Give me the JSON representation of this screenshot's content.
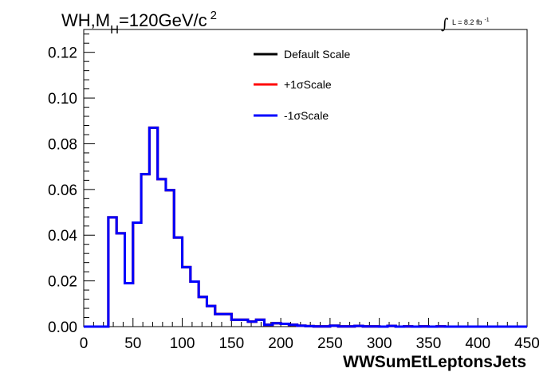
{
  "chart_data": {
    "type": "line",
    "title": {
      "main": "WH,M",
      "sub": "H",
      "rest": "=120GeV/c",
      "sup": "2"
    },
    "luminosity": {
      "symbol": "∫",
      "text": "L = 8.2 fb",
      "sup": "-1"
    },
    "xlabel": "WWSumEtLeptonsJets",
    "ylabel": "",
    "xlim": [
      0,
      450
    ],
    "ylim": [
      0,
      0.13
    ],
    "x_ticks": [
      "0",
      "50",
      "100",
      "150",
      "200",
      "250",
      "300",
      "350",
      "400",
      "450"
    ],
    "y_ticks": [
      "0.00",
      "0.02",
      "0.04",
      "0.06",
      "0.08",
      "0.10",
      "0.12"
    ],
    "bin_edges": [
      0,
      8.33,
      16.67,
      25,
      33.33,
      41.67,
      50,
      58.33,
      66.67,
      75,
      83.33,
      91.67,
      100,
      108.33,
      116.67,
      125,
      133.33,
      141.67,
      150,
      158.33,
      166.67,
      175,
      183.33,
      191.67,
      200,
      208.33,
      216.67,
      225,
      233.33,
      241.67,
      250,
      258.33,
      266.67,
      275,
      283.33,
      291.67,
      300,
      308.33,
      316.67,
      325,
      333.33,
      341.67,
      350,
      358.33,
      366.67,
      375,
      383.33,
      391.67,
      400,
      408.33,
      416.67,
      425,
      433.33,
      441.67,
      450
    ],
    "series": [
      {
        "name": "Default Scale",
        "color": "#000000",
        "values": [
          0,
          0,
          0,
          0.0478,
          0.0408,
          0.019,
          0.0455,
          0.0667,
          0.087,
          0.0645,
          0.0597,
          0.039,
          0.026,
          0.0197,
          0.013,
          0.009,
          0.0055,
          0.0055,
          0.003,
          0.003,
          0.0022,
          0.003,
          0.0008,
          0.0015,
          0.0012,
          0.0008,
          0.0004,
          0.0002,
          0.0001,
          0.0001,
          0.0004,
          0.0001,
          0.0001,
          0.0003,
          0.0001,
          0.0001,
          0,
          0.0003,
          0,
          0.0001,
          0,
          0.0001,
          0,
          0.0001,
          0,
          0,
          0,
          0,
          0,
          0,
          0,
          0,
          0,
          0
        ]
      },
      {
        "name": "+1σScale",
        "color": "#ff0000",
        "values": [
          0,
          0,
          0,
          0.0478,
          0.0408,
          0.019,
          0.0455,
          0.0667,
          0.087,
          0.0645,
          0.0597,
          0.039,
          0.026,
          0.0197,
          0.013,
          0.009,
          0.0055,
          0.0055,
          0.003,
          0.003,
          0.0022,
          0.003,
          0.0008,
          0.0015,
          0.0012,
          0.0008,
          0.0004,
          0.0002,
          0.0001,
          0.0001,
          0.0004,
          0.0001,
          0.0001,
          0.0003,
          0.0001,
          0.0001,
          0,
          0.0003,
          0,
          0.0001,
          0,
          0.0001,
          0,
          0.0001,
          0,
          0,
          0,
          0,
          0,
          0,
          0,
          0,
          0,
          0
        ]
      },
      {
        "name": "-1σScale",
        "color": "#0000ff",
        "values": [
          0,
          0,
          0,
          0.0478,
          0.0408,
          0.019,
          0.0455,
          0.0667,
          0.087,
          0.0645,
          0.0597,
          0.039,
          0.026,
          0.0197,
          0.013,
          0.009,
          0.0055,
          0.0055,
          0.003,
          0.003,
          0.0022,
          0.003,
          0.0008,
          0.0015,
          0.0012,
          0.0008,
          0.0004,
          0.0002,
          0.0001,
          0.0001,
          0.0004,
          0.0001,
          0.0001,
          0.0003,
          0.0001,
          0.0001,
          0,
          0.0003,
          0,
          0.0001,
          0,
          0.0001,
          0,
          0.0001,
          0,
          0,
          0,
          0,
          0,
          0,
          0,
          0,
          0,
          0
        ]
      }
    ],
    "legend_position": "top-center",
    "grid": false
  }
}
